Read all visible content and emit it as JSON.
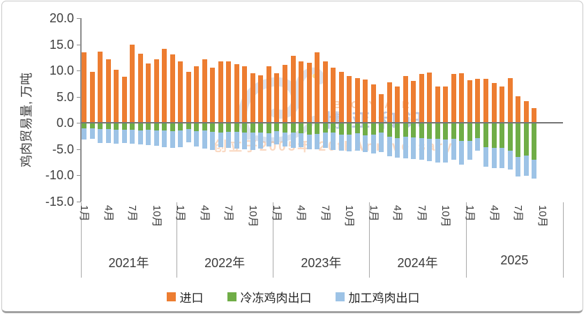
{
  "chart_data": {
    "type": "bar",
    "stacked": true,
    "title": "",
    "ylabel": "鸡肉贸易量, 万吨",
    "ylim": [
      -15,
      20
    ],
    "ytick_step": 5,
    "yticks": [
      "20.0",
      "15.0",
      "10.0",
      "5.0",
      "0.0",
      "-5.0",
      "-10.0",
      "-15.0"
    ],
    "grid": false,
    "legend_position": "bottom",
    "month_ticks": [
      "1月",
      "4月",
      "7月",
      "10月"
    ],
    "years": [
      {
        "label": "2021年",
        "months": 12
      },
      {
        "label": "2022年",
        "months": 12
      },
      {
        "label": "2023年",
        "months": 12
      },
      {
        "label": "2024年",
        "months": 12
      },
      {
        "label": "2025",
        "months": 10
      }
    ],
    "series": [
      {
        "name": "进口",
        "color": "#ED7D31",
        "values": [
          13.5,
          9.7,
          13.6,
          12.2,
          10.1,
          8.8,
          14.9,
          13.2,
          11.4,
          12.2,
          14.1,
          13.1,
          11.8,
          9.8,
          10.8,
          12.1,
          10.6,
          11.7,
          11.8,
          11.2,
          10.8,
          9.5,
          9.1,
          10.8,
          9.5,
          11.1,
          12.8,
          11.8,
          11.5,
          13.5,
          11.7,
          10.5,
          9.7,
          9.0,
          8.6,
          8.3,
          7.3,
          5.5,
          7.8,
          7.0,
          9.0,
          8.0,
          9.3,
          9.6,
          7.0,
          7.0,
          9.3,
          9.5,
          8.1,
          8.4,
          8.4,
          7.6,
          6.9,
          8.5,
          5.1,
          4.1,
          2.8,
          null
        ]
      },
      {
        "name": "冷冻鸡肉出口",
        "color": "#70AD47",
        "values": [
          -1.1,
          -1.0,
          -1.2,
          -1.2,
          -1.3,
          -1.3,
          -1.3,
          -1.4,
          -1.3,
          -1.4,
          -1.5,
          -1.6,
          -1.5,
          -1.2,
          -1.6,
          -1.5,
          -1.7,
          -1.8,
          -1.7,
          -1.7,
          -1.8,
          -1.9,
          -1.8,
          -2.0,
          -1.6,
          -1.9,
          -1.8,
          -2.0,
          -2.2,
          -2.1,
          -1.8,
          -1.9,
          -2.2,
          -2.3,
          -2.0,
          -2.4,
          -2.2,
          -1.9,
          -2.7,
          -2.9,
          -2.7,
          -2.8,
          -2.9,
          -3.0,
          -3.1,
          -3.2,
          -3.0,
          -3.5,
          -3.4,
          -2.9,
          -4.7,
          -4.8,
          -4.8,
          -5.3,
          -6.5,
          -6.2,
          -7.1,
          null
        ]
      },
      {
        "name": "加工鸡肉出口",
        "color": "#9DC3E6",
        "values": [
          -2.1,
          -2.0,
          -2.6,
          -2.6,
          -2.7,
          -2.6,
          -2.7,
          -2.7,
          -2.9,
          -3.0,
          -3.1,
          -3.2,
          -3.1,
          -2.5,
          -2.9,
          -3.4,
          -3.5,
          -2.8,
          -3.1,
          -3.2,
          -3.2,
          -3.3,
          -3.1,
          -2.5,
          -2.5,
          -2.6,
          -3.0,
          -2.7,
          -2.8,
          -3.0,
          -3.0,
          -3.3,
          -3.1,
          -3.2,
          -3.3,
          -3.2,
          -3.7,
          -3.7,
          -3.7,
          -3.7,
          -4.1,
          -4.1,
          -4.2,
          -4.3,
          -4.5,
          -4.4,
          -4.0,
          -4.5,
          -3.6,
          -2.4,
          -3.7,
          -3.8,
          -3.8,
          -3.6,
          -3.7,
          -3.9,
          -3.6,
          null
        ]
      }
    ]
  },
  "legend": {
    "items": [
      {
        "label": "进口",
        "color": "#ED7D31"
      },
      {
        "label": "冷冻鸡肉出口",
        "color": "#70AD47"
      },
      {
        "label": "加工鸡肉出口",
        "color": "#9DC3E6"
      }
    ]
  },
  "watermark": {
    "brand_en": "BOYAR",
    "brand_cn": "博亚和讯",
    "tagline": "创立于2005年 20thAnniversary"
  },
  "colors": {
    "import": "#ED7D31",
    "frozen_export": "#70AD47",
    "processed_export": "#9DC3E6",
    "axis": "#8c8c8c",
    "zero_line": "#757575",
    "text": "#3a3a3a"
  }
}
